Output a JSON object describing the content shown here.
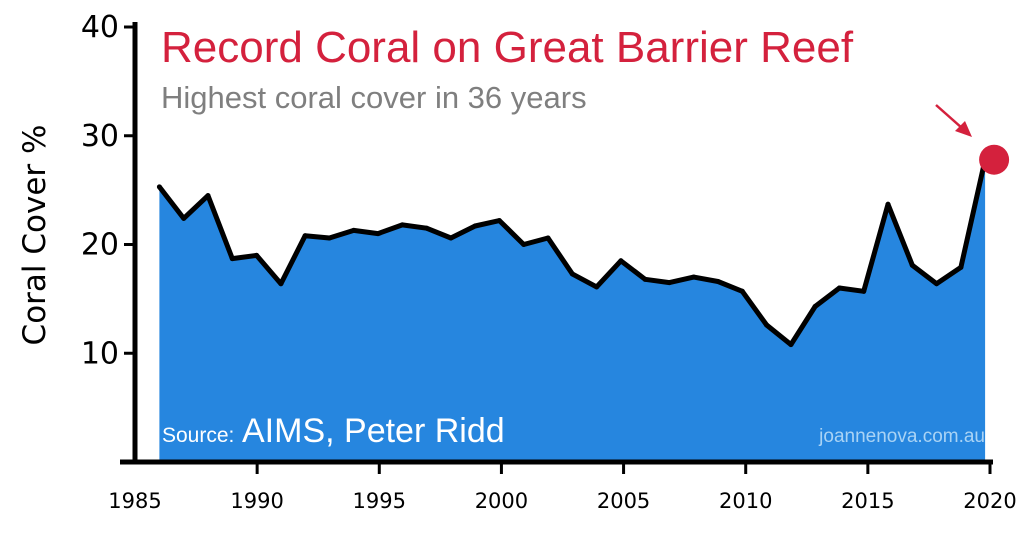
{
  "colors": {
    "area_fill": "#2686df",
    "line": "#000000",
    "title": "#d4213d",
    "subtitle": "#7f7f7f",
    "highlight_marker": "#d4213d",
    "watermark": "#a9d3f5"
  },
  "source": {
    "prefix": "Source:",
    "name": "AIMS, Peter Ridd"
  },
  "watermark": "joannenova.com.au",
  "chart_data": {
    "type": "area",
    "title": "Record Coral on Great Barrier Reef",
    "subtitle": "Highest coral cover in 36 years",
    "xlabel": "",
    "ylabel": "Coral Cover %",
    "xlim": [
      1985,
      2020
    ],
    "ylim": [
      0,
      40
    ],
    "x_ticks": [
      1985,
      1990,
      1995,
      2000,
      2005,
      2010,
      2015,
      2020
    ],
    "y_ticks": [
      10,
      20,
      30,
      40
    ],
    "grid": false,
    "legend": "none",
    "series": [
      {
        "x": [
          1986,
          1987,
          1988,
          1989,
          1990,
          1991,
          1992,
          1993,
          1994,
          1995,
          1996,
          1997,
          1998,
          1999,
          2000,
          2001,
          2002,
          2003,
          2004,
          2005,
          2006,
          2007,
          2008,
          2009,
          2010,
          2011,
          2012,
          2013,
          2014,
          2015,
          2016,
          2017,
          2018,
          2019,
          2020
        ],
        "y": [
          25.3,
          22.4,
          24.5,
          18.7,
          19.0,
          16.4,
          20.8,
          20.6,
          21.3,
          21.0,
          21.8,
          21.5,
          20.6,
          21.7,
          22.2,
          20.0,
          20.6,
          17.3,
          16.1,
          18.5,
          16.8,
          16.5,
          17.0,
          16.6,
          15.7,
          12.6,
          10.8,
          14.3,
          16.0,
          15.7,
          23.7,
          18.1,
          16.4,
          17.9,
          27.8
        ]
      }
    ],
    "annotations": [
      {
        "type": "highlight-point",
        "x": 2020,
        "y": 27.8,
        "note_style": "red circle with arrow"
      }
    ]
  }
}
